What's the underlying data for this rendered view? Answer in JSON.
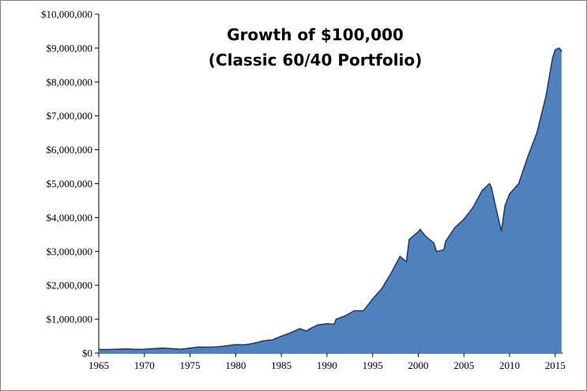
{
  "chart_data": {
    "type": "area",
    "title_lines": [
      "Growth of $100,000",
      "(Classic 60/40 Portfolio)"
    ],
    "xlabel": "",
    "ylabel": "",
    "xlim": [
      1965,
      2015.8
    ],
    "ylim": [
      0,
      10000000
    ],
    "x_ticks": [
      1965,
      1970,
      1975,
      1980,
      1985,
      1990,
      1995,
      2000,
      2005,
      2010,
      2015
    ],
    "x_tick_labels": [
      "1965",
      "1970",
      "1975",
      "1980",
      "1985",
      "1990",
      "1995",
      "2000",
      "2005",
      "2010",
      "2015"
    ],
    "y_ticks": [
      0,
      1000000,
      2000000,
      3000000,
      4000000,
      5000000,
      6000000,
      7000000,
      8000000,
      9000000,
      10000000
    ],
    "y_tick_labels": [
      "$0",
      "$1,000,000",
      "$2,000,000",
      "$3,000,000",
      "$4,000,000",
      "$5,000,000",
      "$6,000,000",
      "$7,000,000",
      "$8,000,000",
      "$9,000,000",
      "$10,000,000"
    ],
    "grid": false,
    "legend": "none",
    "fill_color": "#4f81bd",
    "line_color": "#1f3864",
    "series": [
      {
        "x": [
          1965,
          1966,
          1967,
          1968,
          1969,
          1970,
          1971,
          1972,
          1973,
          1974,
          1975,
          1976,
          1977,
          1978,
          1979,
          1980,
          1981,
          1982,
          1983,
          1984,
          1985,
          1986,
          1987,
          1987.8,
          1988,
          1989,
          1990,
          1990.8,
          1991,
          1992,
          1993,
          1994,
          1995,
          1996,
          1997,
          1998,
          1998.7,
          1999,
          2000,
          2000.2,
          2000.8,
          2001,
          2001.7,
          2002,
          2002.8,
          2003,
          2004,
          2005,
          2006,
          2007,
          2007.8,
          2008,
          2008.5,
          2009.1,
          2009.5,
          2010,
          2011,
          2012,
          2013,
          2014,
          2014.7,
          2015,
          2015.4,
          2015.6,
          2015.7
        ],
        "values": [
          110000,
          105000,
          115000,
          125000,
          110000,
          115000,
          130000,
          150000,
          130000,
          115000,
          150000,
          180000,
          175000,
          185000,
          215000,
          250000,
          245000,
          290000,
          360000,
          390000,
          500000,
          600000,
          720000,
          650000,
          700000,
          830000,
          870000,
          850000,
          1000000,
          1100000,
          1250000,
          1250000,
          1600000,
          1900000,
          2350000,
          2850000,
          2700000,
          3350000,
          3580000,
          3650000,
          3450000,
          3400000,
          3250000,
          3000000,
          3050000,
          3300000,
          3700000,
          3950000,
          4300000,
          4800000,
          5000000,
          4900000,
          4300000,
          3600000,
          4350000,
          4700000,
          5000000,
          5800000,
          6500000,
          7600000,
          8700000,
          8950000,
          9000000,
          8950000,
          8900000
        ]
      }
    ]
  }
}
